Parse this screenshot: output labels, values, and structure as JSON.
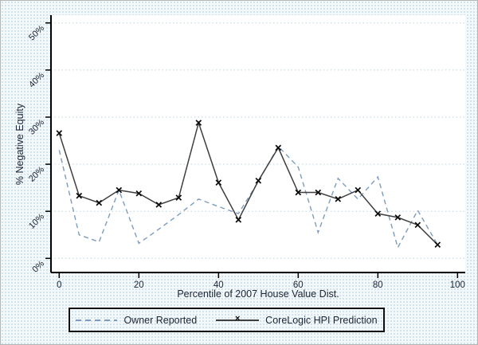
{
  "figure": {
    "background_color": "#f3f8fa",
    "plot_background": "#ffffff",
    "axis_color": "#000000",
    "text_color": "#1c2533"
  },
  "chart_data": {
    "type": "line",
    "title": "",
    "xlabel": "Percentile of 2007 House Value Dist.",
    "ylabel": "% Negative Equity",
    "x": [
      0,
      5,
      10,
      15,
      20,
      25,
      30,
      35,
      40,
      45,
      50,
      55,
      60,
      65,
      70,
      75,
      80,
      85,
      90,
      95
    ],
    "series": [
      {
        "name": "Owner Reported",
        "line_style": "dashed",
        "color": "#7d9cc0",
        "marker": "none",
        "values": [
          23,
          5,
          3.5,
          14.5,
          3.2,
          6.2,
          9.3,
          12.6,
          11,
          9.5,
          16.3,
          23.8,
          19.4,
          5.5,
          17,
          12.6,
          17.3,
          2.3,
          10.2,
          2.9
        ]
      },
      {
        "name": "CoreLogic HPI Prediction",
        "line_style": "solid",
        "color": "#3f3f3f",
        "marker": "x",
        "marker_color": "#0a0a0a",
        "values": [
          26.6,
          13.3,
          11.8,
          14.5,
          13.8,
          11.4,
          12.9,
          28.8,
          16.1,
          8.2,
          16.5,
          23.5,
          14,
          14,
          12.6,
          14.5,
          9.5,
          8.7,
          7.1,
          2.9
        ]
      }
    ],
    "xticks": [
      0,
      20,
      40,
      60,
      80,
      100
    ],
    "xtick_labels": [
      "0",
      "20",
      "40",
      "60",
      "80",
      "100"
    ],
    "yticks": [
      0,
      10,
      20,
      30,
      40,
      50
    ],
    "ytick_labels": [
      "0%",
      "10%",
      "20%",
      "30%",
      "40%",
      "50%"
    ],
    "xlim": [
      -2,
      102
    ],
    "ylim": [
      -3,
      51.5
    ],
    "grid": "horizontal-dotted",
    "gridline_color": "#bcd6e0",
    "legend_position": "bottom"
  },
  "legend": {
    "items": [
      {
        "label": "Owner Reported",
        "sample": "dashed-line"
      },
      {
        "label": "CoreLogic HPI Prediction",
        "sample": "solid-line-x-marker"
      }
    ]
  }
}
